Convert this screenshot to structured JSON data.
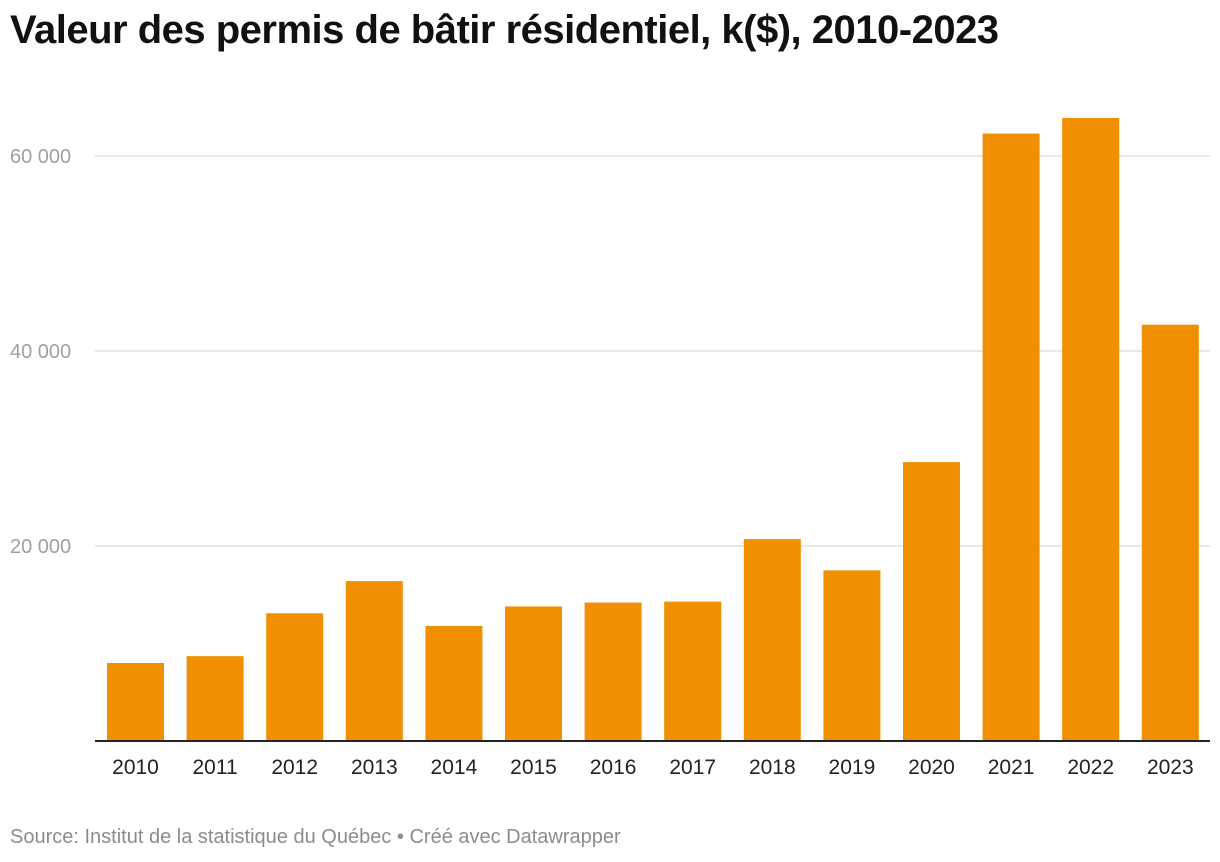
{
  "title": "Valeur des permis de bâtir résidentiel, k($), 2010-2023",
  "footer": {
    "source": "Source: Institut de la statistique du Québec",
    "separator": " • ",
    "credit": "Créé avec Datawrapper"
  },
  "colors": {
    "bar": "#F08F00",
    "grid": "#e0e0e0",
    "baseline": "#222222",
    "tick_label": "#a0a0a0",
    "x_label": "#222222"
  },
  "chart_data": {
    "type": "bar",
    "title": "Valeur des permis de bâtir résidentiel, k($), 2010-2023",
    "xlabel": "",
    "ylabel": "",
    "categories": [
      "2010",
      "2011",
      "2012",
      "2013",
      "2014",
      "2015",
      "2016",
      "2017",
      "2018",
      "2019",
      "2020",
      "2021",
      "2022",
      "2023"
    ],
    "values": [
      8000,
      8700,
      13100,
      16400,
      11800,
      13800,
      14200,
      14300,
      20700,
      17500,
      28600,
      62300,
      63900,
      42700
    ],
    "ylim": [
      0,
      65000
    ],
    "yticks": [
      20000,
      40000,
      60000
    ],
    "ytick_labels": [
      "20 000",
      "40 000",
      "60 000"
    ],
    "grid": true,
    "legend": "none"
  }
}
